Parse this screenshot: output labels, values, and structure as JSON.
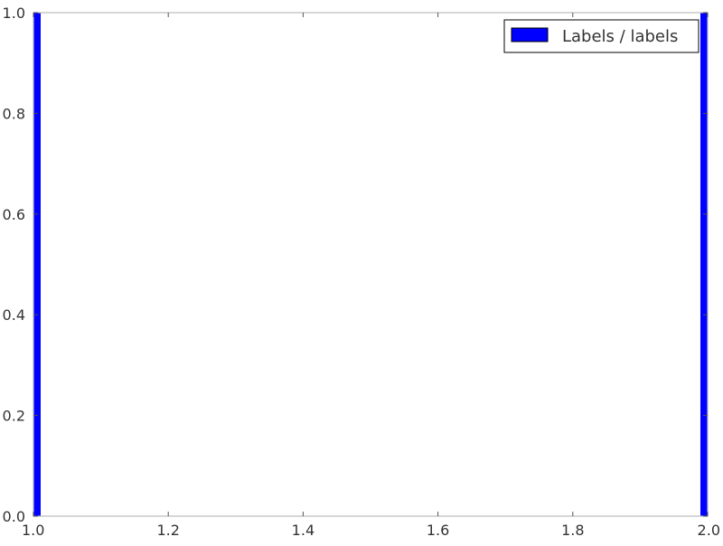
{
  "chart_data": {
    "type": "bar",
    "title": "",
    "xlabel": "",
    "ylabel": "",
    "xlim": [
      1.0,
      2.0
    ],
    "ylim": [
      0.0,
      1.0
    ],
    "x_ticks": [
      "1.0",
      "1.2",
      "1.4",
      "1.6",
      "1.8",
      "2.0"
    ],
    "x_tick_values": [
      1.0,
      1.2,
      1.4,
      1.6,
      1.8,
      2.0
    ],
    "y_ticks": [
      "0.0",
      "0.2",
      "0.4",
      "0.6",
      "0.8",
      "1.0"
    ],
    "y_tick_values": [
      0.0,
      0.2,
      0.4,
      0.6,
      0.8,
      1.0
    ],
    "grid": false,
    "legend_position": "top-right",
    "series": [
      {
        "name": "Labels / labels",
        "color": "#0000ff",
        "points": [
          {
            "x": 1.0,
            "y": 1.0
          },
          {
            "x": 2.0,
            "y": 1.0
          }
        ]
      }
    ]
  }
}
